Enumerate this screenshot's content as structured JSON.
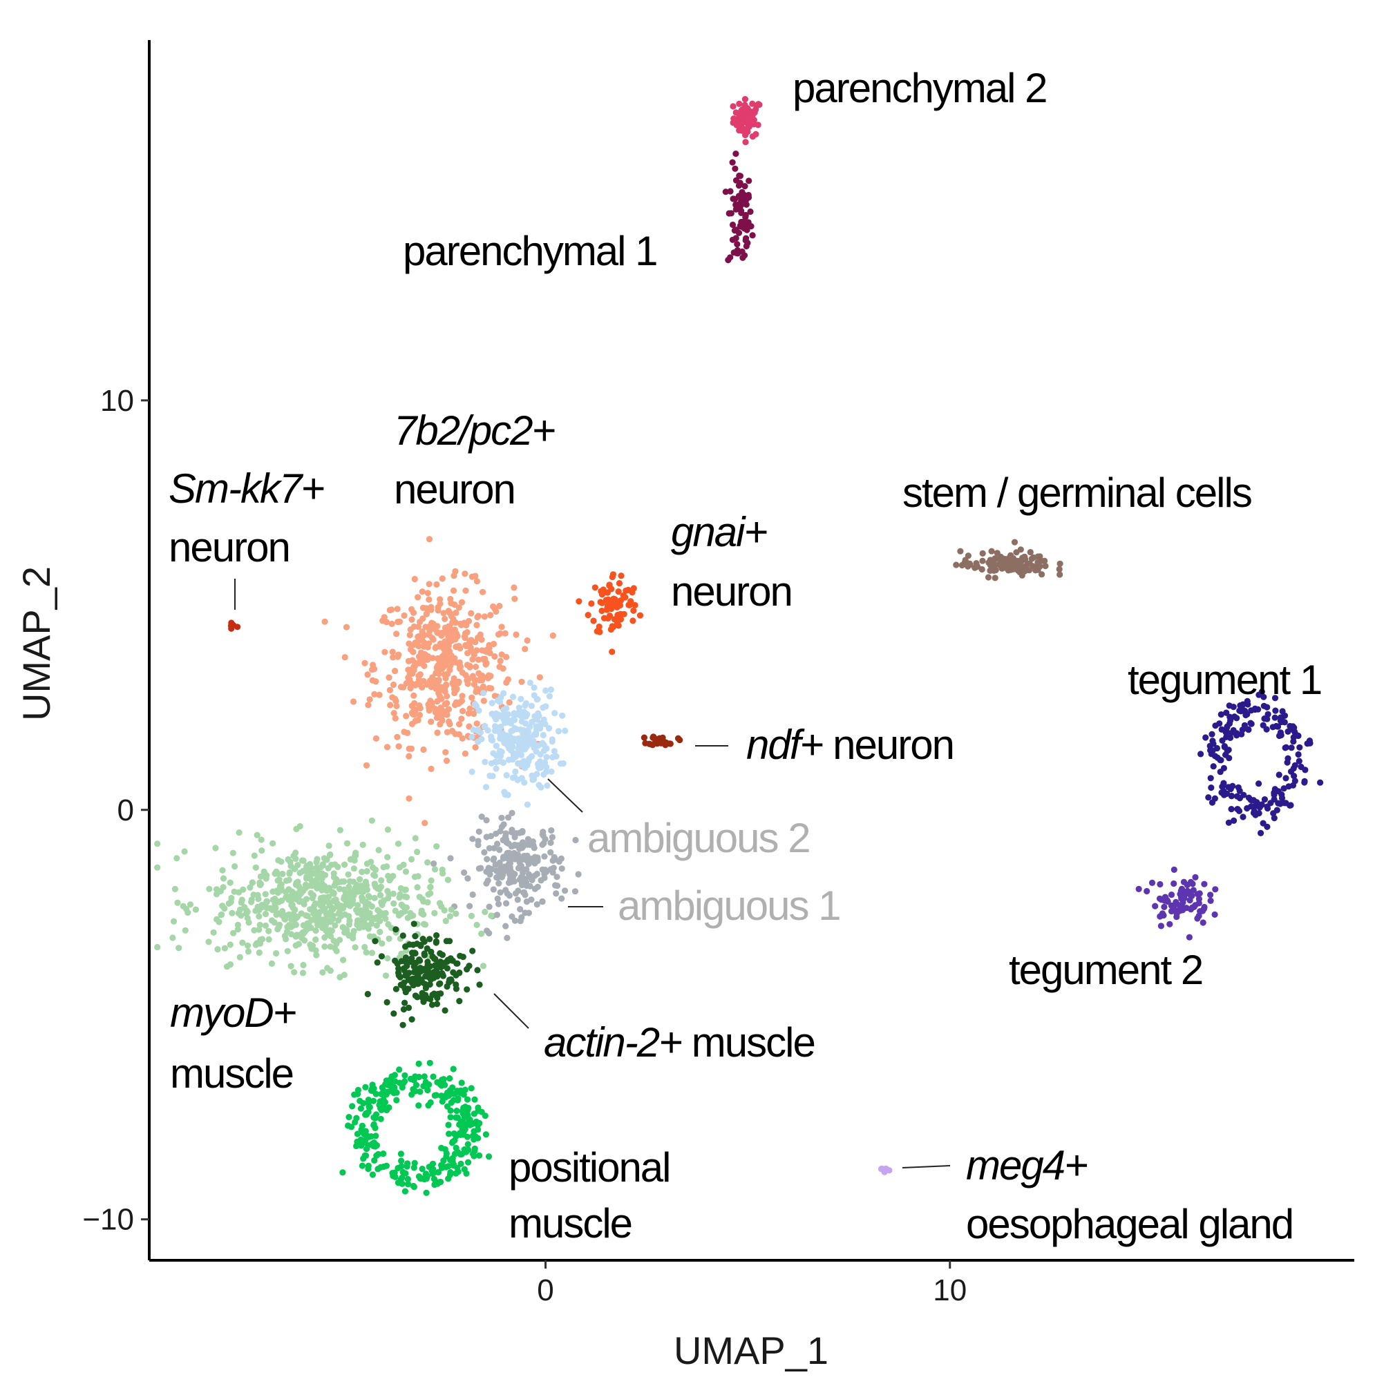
{
  "chart_data": {
    "type": "scatter",
    "xlabel": "UMAP_1",
    "ylabel": "UMAP_2",
    "xlim": [
      -9.8,
      20
    ],
    "ylim": [
      -11,
      18.8
    ],
    "xticks": [
      0,
      10
    ],
    "yticks": [
      -10,
      0,
      10
    ],
    "tick_labels": {
      "x": [
        "0",
        "10"
      ],
      "y": [
        "−10",
        "0",
        "10"
      ]
    },
    "grid": false,
    "legend": "none",
    "clusters": [
      {
        "id": "parenchymal2",
        "label_lines": [
          [
            {
              "t": "parenchymal 2",
              "i": false
            }
          ]
        ],
        "color": "#e03c6e",
        "center": [
          5,
          16.9
        ],
        "spread": [
          0.35,
          0.45
        ],
        "n": 60,
        "shape": "blob"
      },
      {
        "id": "parenchymal1",
        "label_lines": [
          [
            {
              "t": "parenchymal 1",
              "i": false
            }
          ]
        ],
        "color": "#7d0f4a",
        "center": [
          4.8,
          14.4
        ],
        "spread": [
          0.3,
          1.3
        ],
        "n": 70,
        "shape": "blob"
      },
      {
        "id": "pc2",
        "label_lines": [
          [
            {
              "t": "7b2/pc2+",
              "i": true
            }
          ],
          [
            {
              "t": "neuron",
              "i": false
            }
          ]
        ],
        "color": "#f9a07e",
        "center": [
          -2.5,
          3.5
        ],
        "spread": [
          1.7,
          1.9
        ],
        "n": 480,
        "shape": "blob"
      },
      {
        "id": "kk7",
        "label_lines": [
          [
            {
              "t": "Sm-kk7+",
              "i": true
            }
          ],
          [
            {
              "t": "neuron",
              "i": false
            }
          ]
        ],
        "color": "#c62e12",
        "center": [
          -7.75,
          4.5
        ],
        "spread": [
          0.15,
          0.15
        ],
        "n": 8,
        "shape": "blob"
      },
      {
        "id": "gnai",
        "label_lines": [
          [
            {
              "t": "gnai+",
              "i": true
            }
          ],
          [
            {
              "t": "neuron",
              "i": false
            }
          ]
        ],
        "color": "#f8531f",
        "center": [
          1.7,
          5
        ],
        "spread": [
          0.6,
          0.8
        ],
        "n": 80,
        "shape": "blob"
      },
      {
        "id": "ndf",
        "label_lines": [
          [
            {
              "t": "ndf+",
              "i": true
            },
            {
              "t": " neuron",
              "i": false
            }
          ]
        ],
        "color": "#9a2a0f",
        "center": [
          2.9,
          1.7
        ],
        "spread": [
          0.35,
          0.12
        ],
        "n": 26,
        "shape": "blob"
      },
      {
        "id": "ambig2",
        "label_lines": [
          [
            {
              "t": "ambiguous 2",
              "i": false
            }
          ]
        ],
        "color": "#bcdcf5",
        "center": [
          -0.7,
          1.7
        ],
        "spread": [
          1,
          1.2
        ],
        "n": 240,
        "shape": "blob"
      },
      {
        "id": "ambig1",
        "label_lines": [
          [
            {
              "t": "ambiguous 1",
              "i": false
            }
          ]
        ],
        "color": "#a6adb5",
        "center": [
          -0.7,
          -1.4
        ],
        "spread": [
          1.1,
          1.1
        ],
        "n": 230,
        "shape": "blob"
      },
      {
        "id": "myod",
        "label_lines": [
          [
            {
              "t": "myoD+",
              "i": true
            }
          ],
          [
            {
              "t": "muscle",
              "i": false
            }
          ]
        ],
        "color": "#a5d6a7",
        "center": [
          -5.5,
          -2.3
        ],
        "spread": [
          2.8,
          1.4
        ],
        "n": 640,
        "shape": "blob"
      },
      {
        "id": "actin2",
        "label_lines": [
          [
            {
              "t": "actin-2+",
              "i": true
            },
            {
              "t": " muscle",
              "i": false
            }
          ]
        ],
        "color": "#1b5e20",
        "center": [
          -3,
          -3.9
        ],
        "spread": [
          1,
          0.9
        ],
        "n": 170,
        "shape": "blob"
      },
      {
        "id": "positional",
        "label_lines": [
          [
            {
              "t": "positional",
              "i": false
            }
          ],
          [
            {
              "t": "muscle",
              "i": false
            }
          ]
        ],
        "color": "#00c853",
        "center": [
          -3.2,
          -7.8
        ],
        "spread": [
          1.7,
          1.5
        ],
        "n": 320,
        "shape": "ring"
      },
      {
        "id": "stem",
        "label_lines": [
          [
            {
              "t": "stem / germinal cells",
              "i": false
            }
          ]
        ],
        "color": "#8d6e63",
        "center": [
          11.4,
          6
        ],
        "spread": [
          1.1,
          0.3
        ],
        "n": 110,
        "shape": "blob"
      },
      {
        "id": "teg1",
        "label_lines": [
          [
            {
              "t": "tegument 1",
              "i": false
            }
          ]
        ],
        "color": "#2a1a8c",
        "center": [
          17.6,
          1.2
        ],
        "spread": [
          1.3,
          1.6
        ],
        "n": 200,
        "shape": "ring"
      },
      {
        "id": "teg2",
        "label_lines": [
          [
            {
              "t": "tegument 2",
              "i": false
            }
          ]
        ],
        "color": "#5e35b1",
        "center": [
          15.7,
          -2.2
        ],
        "spread": [
          0.7,
          0.6
        ],
        "n": 80,
        "shape": "blob"
      },
      {
        "id": "meg4",
        "label_lines": [
          [
            {
              "t": "meg4+",
              "i": true
            }
          ],
          [
            {
              "t": "oesophageal gland",
              "i": false
            }
          ]
        ],
        "color": "#c5a5f0",
        "center": [
          8.35,
          -8.8
        ],
        "spread": [
          0.12,
          0.08
        ],
        "n": 6,
        "shape": "blob"
      }
    ]
  }
}
